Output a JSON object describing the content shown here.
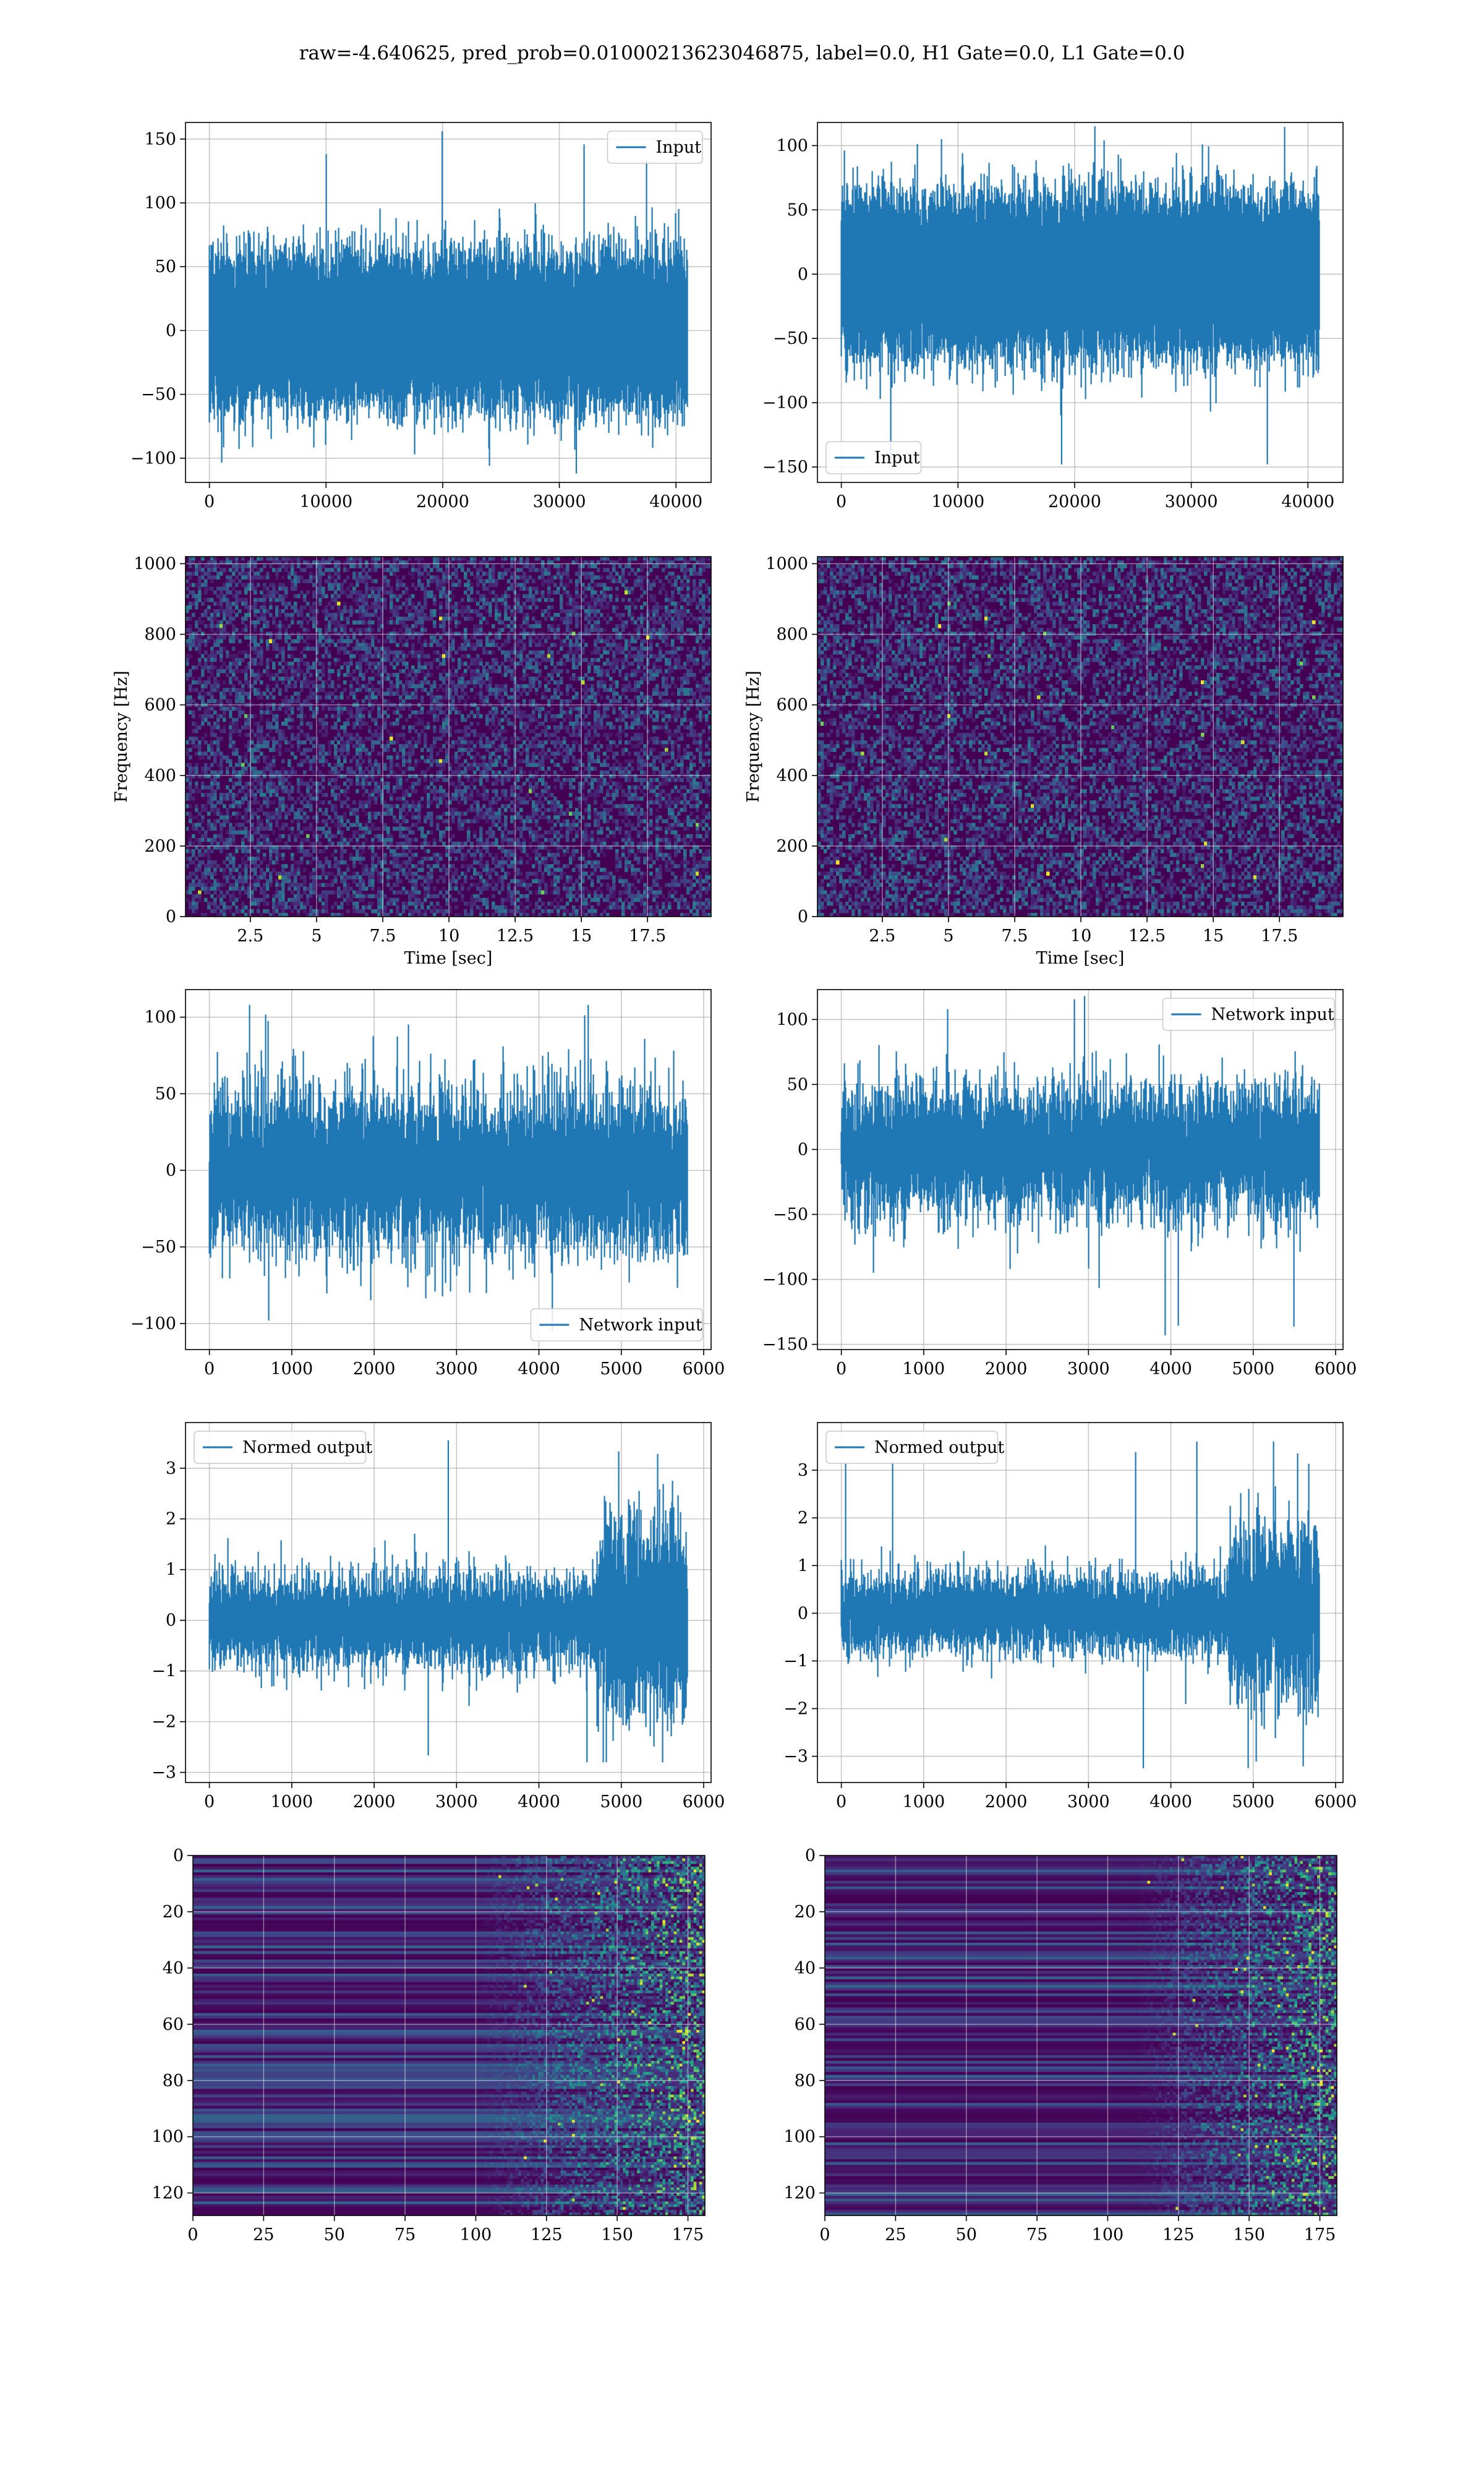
{
  "suptitle": "raw=-4.640625, pred_prob=0.01000213623046875, label=0.0, H1 Gate=0.0, L1 Gate=0.0",
  "colors": {
    "line": "#1f77b4",
    "viridis": [
      "#440154",
      "#482878",
      "#3e4989",
      "#31688e",
      "#26828e",
      "#1f9e89",
      "#35b779",
      "#6ece58",
      "#b5de2b",
      "#fde725"
    ]
  },
  "chart_data": [
    {
      "id": "h1-input",
      "type": "line",
      "title": "",
      "xlabel": "",
      "ylabel": "",
      "xlim": [
        -2048,
        43008
      ],
      "ylim": [
        -119,
        163
      ],
      "xticks": [
        0,
        10000,
        20000,
        30000,
        40000
      ],
      "yticks": [
        -100,
        -50,
        0,
        50,
        100,
        150
      ],
      "grid": true,
      "legend": {
        "label": "Input",
        "loc": "upper right"
      },
      "signal": {
        "n": 40960,
        "x0": 0,
        "x1": 40959,
        "amp": 26,
        "min": -112,
        "max": 156
      },
      "series": [
        {
          "name": "Input"
        }
      ]
    },
    {
      "id": "l1-input",
      "type": "line",
      "title": "",
      "xlabel": "",
      "ylabel": "",
      "xlim": [
        -2048,
        43008
      ],
      "ylim": [
        -162,
        118
      ],
      "xticks": [
        0,
        10000,
        20000,
        30000,
        40000
      ],
      "yticks": [
        -150,
        -100,
        -50,
        0,
        50,
        100
      ],
      "grid": true,
      "legend": {
        "label": "Input",
        "loc": "lower left"
      },
      "signal": {
        "n": 40960,
        "x0": 0,
        "x1": 40959,
        "amp": 27,
        "min": -148,
        "max": 115
      },
      "series": [
        {
          "name": "Input"
        }
      ]
    },
    {
      "id": "h1-spectrogram",
      "type": "heatmap",
      "title": "",
      "xlabel": "Time [sec]",
      "ylabel": "Frequency [Hz]",
      "xlim": [
        0.05,
        19.9
      ],
      "ylim": [
        0,
        1020
      ],
      "xticks": [
        2.5,
        5.0,
        7.5,
        10.0,
        12.5,
        15.0,
        17.5
      ],
      "yticks": [
        0,
        200,
        400,
        600,
        800,
        1000
      ],
      "grid": true,
      "colormap": "viridis",
      "pattern": "noise"
    },
    {
      "id": "l1-spectrogram",
      "type": "heatmap",
      "title": "",
      "xlabel": "Time [sec]",
      "ylabel": "Frequency [Hz]",
      "xlim": [
        0.05,
        19.9
      ],
      "ylim": [
        0,
        1020
      ],
      "xticks": [
        2.5,
        5.0,
        7.5,
        10.0,
        12.5,
        15.0,
        17.5
      ],
      "yticks": [
        0,
        200,
        400,
        600,
        800,
        1000
      ],
      "grid": true,
      "colormap": "viridis",
      "pattern": "noise"
    },
    {
      "id": "h1-network-input",
      "type": "line",
      "title": "",
      "xlabel": "",
      "ylabel": "",
      "xlim": [
        -290,
        6090
      ],
      "ylim": [
        -117,
        118
      ],
      "xticks": [
        0,
        1000,
        2000,
        3000,
        4000,
        5000,
        6000
      ],
      "yticks": [
        -100,
        -50,
        0,
        50,
        100
      ],
      "grid": true,
      "legend": {
        "label": "Network input",
        "loc": "lower right"
      },
      "signal": {
        "n": 5800,
        "x0": 0,
        "x1": 5800,
        "amp": 26,
        "min": -105,
        "max": 108
      },
      "series": [
        {
          "name": "Network input"
        }
      ]
    },
    {
      "id": "l1-network-input",
      "type": "line",
      "title": "",
      "xlabel": "",
      "ylabel": "",
      "xlim": [
        -290,
        6090
      ],
      "ylim": [
        -154,
        123
      ],
      "xticks": [
        0,
        1000,
        2000,
        3000,
        4000,
        5000,
        6000
      ],
      "yticks": [
        -150,
        -100,
        -50,
        0,
        50,
        100
      ],
      "grid": true,
      "legend": {
        "label": "Network input",
        "loc": "upper right"
      },
      "signal": {
        "n": 5800,
        "x0": 0,
        "x1": 5800,
        "amp": 25,
        "min": -143,
        "max": 118
      },
      "series": [
        {
          "name": "Network input"
        }
      ]
    },
    {
      "id": "h1-normed-output",
      "type": "line",
      "title": "",
      "xlabel": "",
      "ylabel": "",
      "xlim": [
        -290,
        6090
      ],
      "ylim": [
        -3.2,
        3.9
      ],
      "xticks": [
        0,
        1000,
        2000,
        3000,
        4000,
        5000,
        6000
      ],
      "yticks": [
        -3,
        -2,
        -1,
        0,
        1,
        2,
        3
      ],
      "grid": true,
      "legend": {
        "label": "Normed output",
        "loc": "upper left"
      },
      "signal": {
        "n": 5800,
        "x0": 0,
        "x1": 5800,
        "amp": 0.45,
        "min": -2.8,
        "max": 3.55,
        "burst_start": 4700,
        "burst_amp": 0.95
      },
      "series": [
        {
          "name": "Normed output"
        }
      ]
    },
    {
      "id": "l1-normed-output",
      "type": "line",
      "title": "",
      "xlabel": "",
      "ylabel": "",
      "xlim": [
        -290,
        6090
      ],
      "ylim": [
        -3.55,
        4.0
      ],
      "xticks": [
        0,
        1000,
        2000,
        3000,
        4000,
        5000,
        6000
      ],
      "yticks": [
        -3,
        -2,
        -1,
        0,
        1,
        2,
        3
      ],
      "grid": true,
      "legend": {
        "label": "Normed output",
        "loc": "upper left"
      },
      "signal": {
        "n": 5800,
        "x0": 0,
        "x1": 5800,
        "amp": 0.42,
        "min": -3.25,
        "max": 3.6,
        "burst_start": 4700,
        "burst_amp": 0.95
      },
      "series": [
        {
          "name": "Normed output"
        }
      ]
    },
    {
      "id": "h1-feature-map",
      "type": "heatmap",
      "title": "",
      "xlabel": "",
      "ylabel": "",
      "xlim": [
        0,
        181
      ],
      "ylim": [
        128,
        0
      ],
      "xticks": [
        0,
        25,
        50,
        75,
        100,
        125,
        150,
        175
      ],
      "yticks": [
        0,
        20,
        40,
        60,
        80,
        100,
        120
      ],
      "grid": true,
      "colormap": "viridis",
      "pattern": "rows",
      "shape": {
        "rows": 128,
        "cols": 181
      },
      "active_from_col": 100
    },
    {
      "id": "l1-feature-map",
      "type": "heatmap",
      "title": "",
      "xlabel": "",
      "ylabel": "",
      "xlim": [
        0,
        181
      ],
      "ylim": [
        128,
        0
      ],
      "xticks": [
        0,
        25,
        50,
        75,
        100,
        125,
        150,
        175
      ],
      "yticks": [
        0,
        20,
        40,
        60,
        80,
        100,
        120
      ],
      "grid": true,
      "colormap": "viridis",
      "pattern": "rows",
      "shape": {
        "rows": 128,
        "cols": 181
      },
      "active_from_col": 110
    }
  ]
}
